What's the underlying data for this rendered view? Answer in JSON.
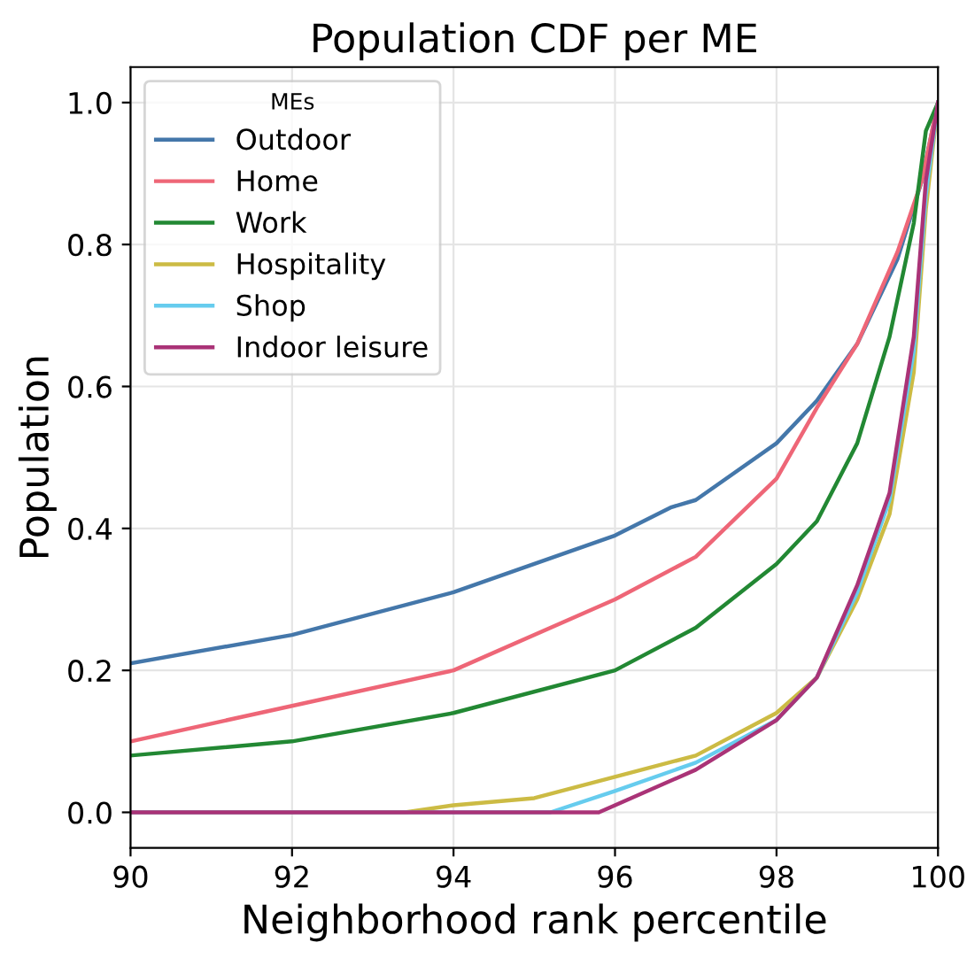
{
  "chart_data": {
    "type": "line",
    "title": "Population CDF per ME",
    "xlabel": "Neighborhood rank percentile",
    "ylabel": "Population",
    "legend_title": "MEs",
    "xlim": [
      90,
      100
    ],
    "xticks": [
      90,
      92,
      94,
      96,
      98,
      100
    ],
    "ylim": [
      -0.05,
      1.05
    ],
    "yticks": [
      {
        "value": 0,
        "label": "0.0"
      },
      {
        "value": 0.2,
        "label": "0.2"
      },
      {
        "value": 0.4,
        "label": "0.4"
      },
      {
        "value": 0.6,
        "label": "0.6"
      },
      {
        "value": 0.8,
        "label": "0.8"
      },
      {
        "value": 1,
        "label": "1.0"
      }
    ],
    "grid": true,
    "legend": "top left",
    "marker": "none",
    "line_style": "solid",
    "series": [
      {
        "name": "Outdoor",
        "color": "#4477aa",
        "x": [
          90,
          92,
          94,
          96,
          96.7,
          97,
          98,
          98.5,
          99,
          99.5,
          99.8,
          100
        ],
        "values": [
          0.21,
          0.25,
          0.31,
          0.39,
          0.43,
          0.44,
          0.52,
          0.58,
          0.66,
          0.78,
          0.89,
          1.0
        ]
      },
      {
        "name": "Home",
        "color": "#ee6677",
        "x": [
          90,
          92,
          94,
          96,
          97,
          98,
          98.5,
          99,
          99.5,
          99.8,
          100
        ],
        "values": [
          0.1,
          0.15,
          0.2,
          0.3,
          0.36,
          0.47,
          0.57,
          0.66,
          0.79,
          0.89,
          1.0
        ]
      },
      {
        "name": "Work",
        "color": "#228833",
        "x": [
          90,
          92,
          94,
          96,
          97,
          98,
          98.5,
          99,
          99.4,
          99.7,
          99.85,
          100
        ],
        "values": [
          0.08,
          0.1,
          0.14,
          0.2,
          0.26,
          0.35,
          0.41,
          0.52,
          0.67,
          0.83,
          0.96,
          1.0
        ]
      },
      {
        "name": "Hospitality",
        "color": "#ccbb44",
        "x": [
          90,
          93.4,
          94,
          95,
          96,
          97,
          98,
          98.5,
          99,
          99.4,
          99.7,
          99.85,
          100
        ],
        "values": [
          0,
          0,
          0.01,
          0.02,
          0.05,
          0.08,
          0.14,
          0.19,
          0.3,
          0.42,
          0.62,
          0.85,
          1.0
        ]
      },
      {
        "name": "Shop",
        "color": "#66ccee",
        "x": [
          90,
          95.2,
          96,
          97,
          98,
          98.5,
          99,
          99.4,
          99.7,
          99.85,
          100
        ],
        "values": [
          0,
          0,
          0.03,
          0.07,
          0.13,
          0.19,
          0.31,
          0.44,
          0.65,
          0.87,
          1.0
        ]
      },
      {
        "name": "Indoor leisure",
        "color": "#aa3377",
        "x": [
          90,
          95.8,
          96,
          97,
          98,
          98.5,
          99,
          99.4,
          99.7,
          99.85,
          100
        ],
        "values": [
          0,
          0,
          0.01,
          0.06,
          0.13,
          0.19,
          0.32,
          0.45,
          0.67,
          0.89,
          1.0
        ]
      }
    ]
  }
}
